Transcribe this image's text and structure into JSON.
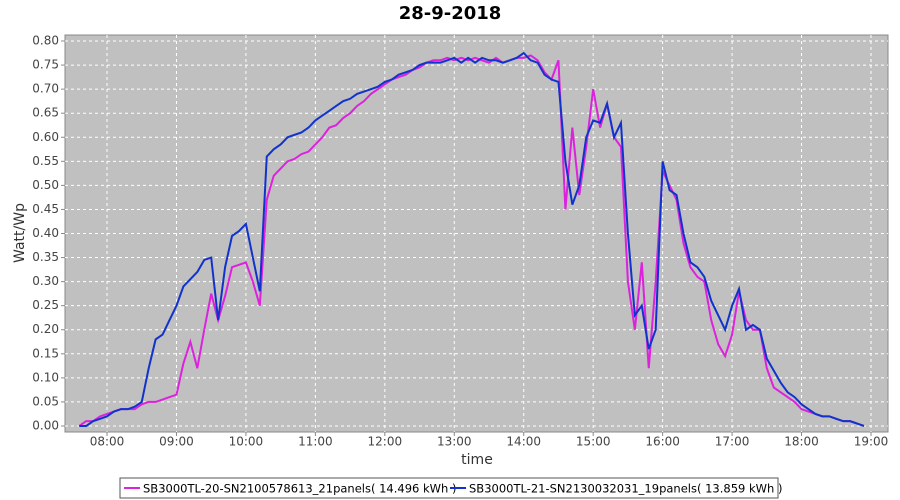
{
  "chart_data": {
    "type": "line",
    "title": "28-9-2018",
    "x_label": "time",
    "y_label": "Watt/Wp",
    "x": [
      7.6,
      7.7,
      7.8,
      7.9,
      8.0,
      8.1,
      8.2,
      8.3,
      8.4,
      8.5,
      8.6,
      8.7,
      8.8,
      8.9,
      9.0,
      9.1,
      9.2,
      9.3,
      9.4,
      9.5,
      9.6,
      9.7,
      9.8,
      9.9,
      10.0,
      10.1,
      10.2,
      10.3,
      10.4,
      10.5,
      10.6,
      10.7,
      10.8,
      10.9,
      11.0,
      11.1,
      11.2,
      11.3,
      11.4,
      11.5,
      11.6,
      11.7,
      11.8,
      11.9,
      12.0,
      12.1,
      12.2,
      12.3,
      12.4,
      12.5,
      12.6,
      12.7,
      12.8,
      12.9,
      13.0,
      13.1,
      13.2,
      13.3,
      13.4,
      13.5,
      13.6,
      13.7,
      13.8,
      13.9,
      14.0,
      14.1,
      14.2,
      14.3,
      14.4,
      14.5,
      14.6,
      14.7,
      14.8,
      14.9,
      15.0,
      15.1,
      15.2,
      15.3,
      15.4,
      15.5,
      15.6,
      15.7,
      15.8,
      15.9,
      16.0,
      16.1,
      16.2,
      16.3,
      16.4,
      16.5,
      16.6,
      16.7,
      16.8,
      16.9,
      17.0,
      17.1,
      17.2,
      17.3,
      17.4,
      17.5,
      17.6,
      17.7,
      17.8,
      17.9,
      18.0,
      18.1,
      18.2,
      18.3,
      18.4,
      18.5,
      18.6,
      18.7,
      18.8,
      18.9
    ],
    "series": [
      {
        "name": "SB3000TL-20-SN2100578613_21panels( 14.496 kWh )",
        "color": "#dd22dd",
        "values": [
          0.0,
          0.01,
          0.01,
          0.02,
          0.025,
          0.03,
          0.035,
          0.035,
          0.035,
          0.045,
          0.05,
          0.05,
          0.055,
          0.06,
          0.065,
          0.13,
          0.175,
          0.12,
          0.2,
          0.275,
          0.22,
          0.27,
          0.33,
          0.335,
          0.34,
          0.3,
          0.25,
          0.47,
          0.52,
          0.535,
          0.55,
          0.555,
          0.565,
          0.57,
          0.585,
          0.6,
          0.62,
          0.625,
          0.64,
          0.65,
          0.665,
          0.675,
          0.69,
          0.7,
          0.71,
          0.72,
          0.725,
          0.73,
          0.74,
          0.745,
          0.755,
          0.76,
          0.76,
          0.765,
          0.76,
          0.765,
          0.76,
          0.765,
          0.76,
          0.755,
          0.765,
          0.755,
          0.76,
          0.765,
          0.765,
          0.77,
          0.76,
          0.735,
          0.72,
          0.76,
          0.45,
          0.62,
          0.48,
          0.58,
          0.7,
          0.62,
          0.67,
          0.6,
          0.58,
          0.3,
          0.2,
          0.34,
          0.12,
          0.3,
          0.53,
          0.5,
          0.47,
          0.38,
          0.33,
          0.31,
          0.3,
          0.22,
          0.17,
          0.145,
          0.19,
          0.28,
          0.22,
          0.2,
          0.2,
          0.12,
          0.08,
          0.07,
          0.06,
          0.05,
          0.035,
          0.03,
          0.025,
          0.02,
          0.02,
          0.015,
          0.01,
          0.01,
          0.005,
          0.0
        ]
      },
      {
        "name": "SB3000TL-21-SN2130032031_19panels( 13.859 kWh )",
        "color": "#1133cc",
        "values": [
          0.0,
          0.0,
          0.01,
          0.015,
          0.02,
          0.03,
          0.035,
          0.035,
          0.04,
          0.05,
          0.12,
          0.18,
          0.19,
          0.22,
          0.25,
          0.29,
          0.305,
          0.32,
          0.345,
          0.35,
          0.22,
          0.33,
          0.395,
          0.405,
          0.42,
          0.35,
          0.28,
          0.56,
          0.575,
          0.585,
          0.6,
          0.605,
          0.61,
          0.62,
          0.635,
          0.645,
          0.655,
          0.665,
          0.675,
          0.68,
          0.69,
          0.695,
          0.7,
          0.705,
          0.715,
          0.72,
          0.73,
          0.735,
          0.74,
          0.75,
          0.755,
          0.755,
          0.755,
          0.76,
          0.765,
          0.755,
          0.765,
          0.755,
          0.765,
          0.76,
          0.76,
          0.755,
          0.76,
          0.765,
          0.775,
          0.76,
          0.755,
          0.73,
          0.72,
          0.715,
          0.55,
          0.46,
          0.5,
          0.6,
          0.635,
          0.63,
          0.67,
          0.6,
          0.63,
          0.4,
          0.23,
          0.25,
          0.16,
          0.2,
          0.55,
          0.49,
          0.48,
          0.4,
          0.34,
          0.33,
          0.31,
          0.26,
          0.23,
          0.2,
          0.25,
          0.285,
          0.2,
          0.21,
          0.2,
          0.14,
          0.115,
          0.09,
          0.07,
          0.06,
          0.045,
          0.035,
          0.025,
          0.02,
          0.02,
          0.015,
          0.01,
          0.01,
          0.005,
          0.0
        ]
      }
    ],
    "xlim": [
      7.395,
      19.245
    ],
    "xticks": [
      {
        "value": 8,
        "label": "08:00"
      },
      {
        "value": 9,
        "label": "09:00"
      },
      {
        "value": 10,
        "label": "10:00"
      },
      {
        "value": 11,
        "label": "11:00"
      },
      {
        "value": 12,
        "label": "12:00"
      },
      {
        "value": 13,
        "label": "13:00"
      },
      {
        "value": 14,
        "label": "14:00"
      },
      {
        "value": 15,
        "label": "15:00"
      },
      {
        "value": 16,
        "label": "16:00"
      },
      {
        "value": 17,
        "label": "17:00"
      },
      {
        "value": 18,
        "label": "18:00"
      },
      {
        "value": 19,
        "label": "19:00"
      }
    ],
    "ylim": [
      -0.0125,
      0.8125
    ],
    "yticks": [
      {
        "value": 0,
        "label": "0.00"
      },
      {
        "value": 0.05,
        "label": "0.05"
      },
      {
        "value": 0.1,
        "label": "0.10"
      },
      {
        "value": 0.15,
        "label": "0.15"
      },
      {
        "value": 0.2,
        "label": "0.20"
      },
      {
        "value": 0.25,
        "label": "0.25"
      },
      {
        "value": 0.3,
        "label": "0.30"
      },
      {
        "value": 0.35,
        "label": "0.35"
      },
      {
        "value": 0.4,
        "label": "0.40"
      },
      {
        "value": 0.45,
        "label": "0.45"
      },
      {
        "value": 0.5,
        "label": "0.50"
      },
      {
        "value": 0.55,
        "label": "0.55"
      },
      {
        "value": 0.6,
        "label": "0.60"
      },
      {
        "value": 0.65,
        "label": "0.65"
      },
      {
        "value": 0.7,
        "label": "0.70"
      },
      {
        "value": 0.75,
        "label": "0.75"
      },
      {
        "value": 0.8,
        "label": "0.80"
      }
    ],
    "grid": true,
    "legend": "bottom"
  }
}
